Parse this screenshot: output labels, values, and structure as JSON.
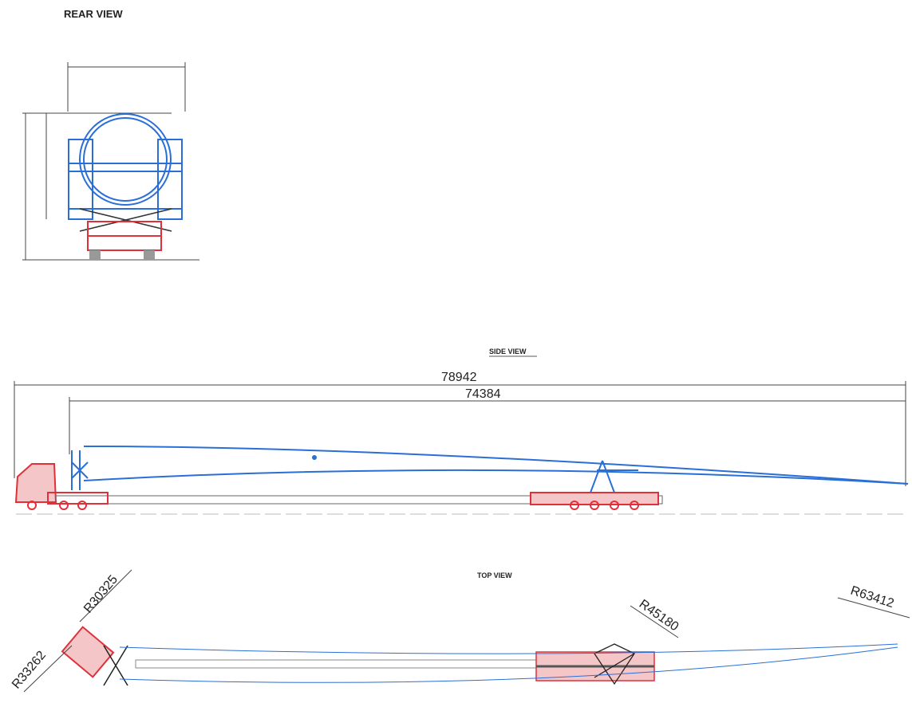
{
  "rear_view": {
    "title": "REAR VIEW"
  },
  "side_view": {
    "title": "SIDE VIEW",
    "dimensions": [
      78942,
      74384
    ]
  },
  "top_view": {
    "title": "TOP VIEW",
    "radii": [
      "R30325",
      "R33262",
      "R45180",
      "R63412"
    ]
  }
}
